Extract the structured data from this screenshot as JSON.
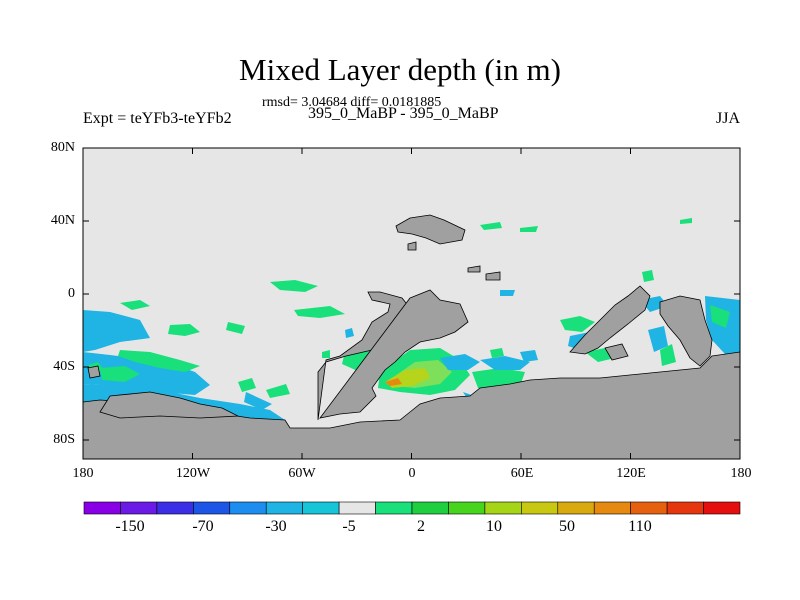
{
  "title": "Mixed Layer depth (in m)",
  "stats_line": "rmsd= 3.04684 diff= 0.0181885",
  "subtitle": "395_0_MaBP - 395_0_MaBP",
  "experiment_label": "Expt = teYFb3-teYFb2",
  "season_label": "JJA",
  "y_ticks": [
    "80N",
    "40N",
    "0",
    "40S",
    "80S"
  ],
  "x_ticks": [
    "180",
    "120W",
    "60W",
    "0",
    "60E",
    "120E",
    "180"
  ],
  "colorbar": {
    "labels": [
      "-150",
      "-70",
      "-30",
      "-5",
      "2",
      "10",
      "50",
      "110"
    ],
    "colors": [
      "#8a00e6",
      "#6a1be6",
      "#3a2ee6",
      "#1d55e6",
      "#1d8ef0",
      "#1fb4e3",
      "#17c4d8",
      "#e6e6e6",
      "#19e07a",
      "#1fcf3f",
      "#46d41c",
      "#a6d417",
      "#c8c812",
      "#d9aa10",
      "#e58910",
      "#e6610f",
      "#e6360f",
      "#e60f0f"
    ]
  },
  "map_colors": {
    "background": "#e6e6e6",
    "land": "#a0a0a0",
    "cyan": "#1fb4e3",
    "green": "#19e07a",
    "light_green": "#7ee05a",
    "yellow_green": "#b6d41c",
    "orange": "#e58910",
    "red": "#e6360f",
    "blue": "#1d55e6"
  }
}
